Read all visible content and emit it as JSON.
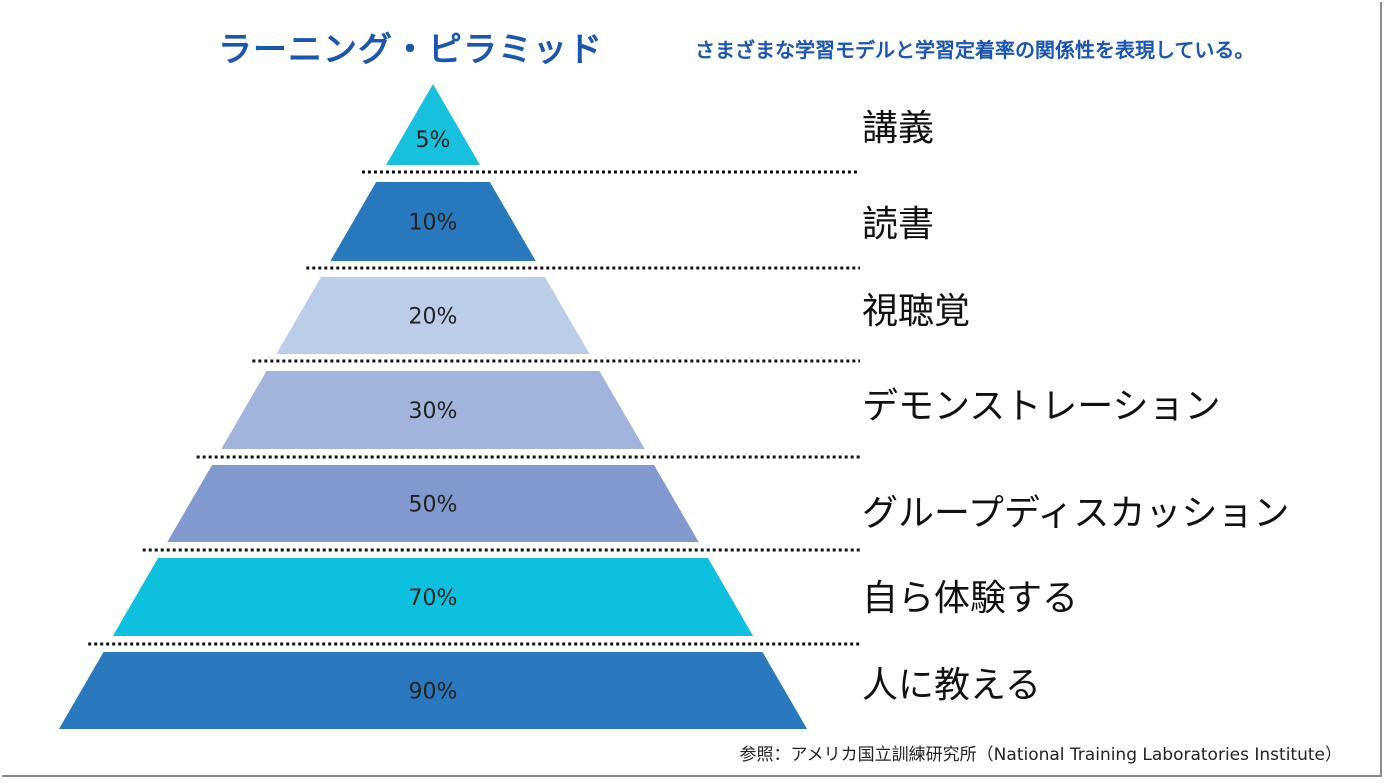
{
  "header": {
    "title": "ラーニング・ピラミッド",
    "subtitle": "さまざまな学習モデルと学習定着率の関係性を表現している。"
  },
  "pyramid": {
    "tiers": [
      {
        "label": "講義",
        "percent": "5%",
        "value": 5,
        "color": "#17c0dc"
      },
      {
        "label": "読書",
        "percent": "10%",
        "value": 10,
        "color": "#2878be"
      },
      {
        "label": "視聴覚",
        "percent": "20%",
        "value": 20,
        "color": "#bccde9"
      },
      {
        "label": "デモンストレーション",
        "percent": "30%",
        "value": 30,
        "color": "#a2b4dc"
      },
      {
        "label": "グループディスカッション",
        "percent": "50%",
        "value": 50,
        "color": "#8199cf"
      },
      {
        "label": "自ら体験する",
        "percent": "70%",
        "value": 70,
        "color": "#0dc0de"
      },
      {
        "label": "人に教える",
        "percent": "90%",
        "value": 90,
        "color": "#2a78be"
      }
    ]
  },
  "footer": {
    "source": "参照：アメリカ国立訓練研究所（National Training Laboratories Institute）"
  }
}
